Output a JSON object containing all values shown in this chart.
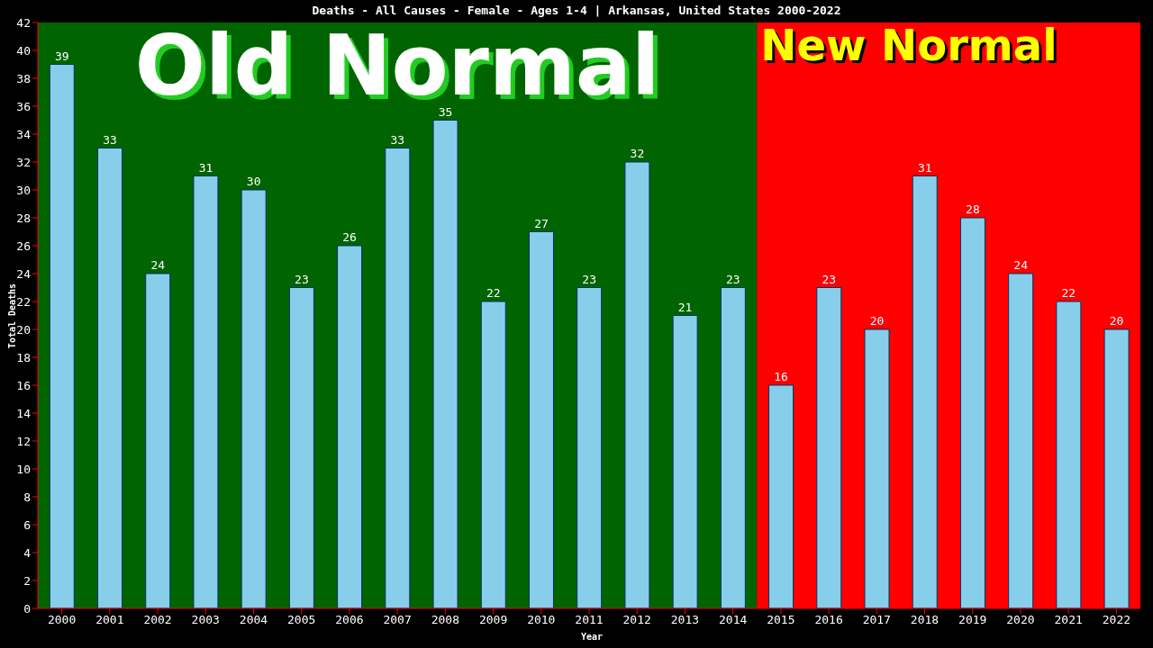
{
  "chart_data": {
    "type": "bar",
    "title": "Deaths - All Causes - Female - Ages 1-4 | Arkansas, United States 2000-2022",
    "xlabel": "Year",
    "ylabel": "Total Deaths",
    "categories": [
      "2000",
      "2001",
      "2002",
      "2003",
      "2004",
      "2005",
      "2006",
      "2007",
      "2008",
      "2009",
      "2010",
      "2011",
      "2012",
      "2013",
      "2014",
      "2015",
      "2016",
      "2017",
      "2018",
      "2019",
      "2020",
      "2021",
      "2022"
    ],
    "values": [
      39,
      33,
      24,
      31,
      30,
      23,
      26,
      33,
      35,
      22,
      27,
      23,
      32,
      21,
      23,
      16,
      23,
      20,
      31,
      28,
      24,
      22,
      20
    ],
    "color": "#87ceeb",
    "data_labels": true,
    "ylim": [
      0,
      42
    ],
    "yticks": [
      0,
      2,
      4,
      6,
      8,
      10,
      12,
      14,
      16,
      18,
      20,
      22,
      24,
      26,
      28,
      30,
      32,
      34,
      36,
      38,
      40,
      42
    ],
    "grid": false,
    "legend": false,
    "bands": [
      {
        "axis": "x",
        "from": "2000",
        "to": "2014",
        "label": "Old Normal",
        "color": "#006400"
      },
      {
        "axis": "x",
        "from": "2015",
        "to": "2022",
        "label": "New Normal",
        "color": "#ff0000"
      }
    ]
  }
}
